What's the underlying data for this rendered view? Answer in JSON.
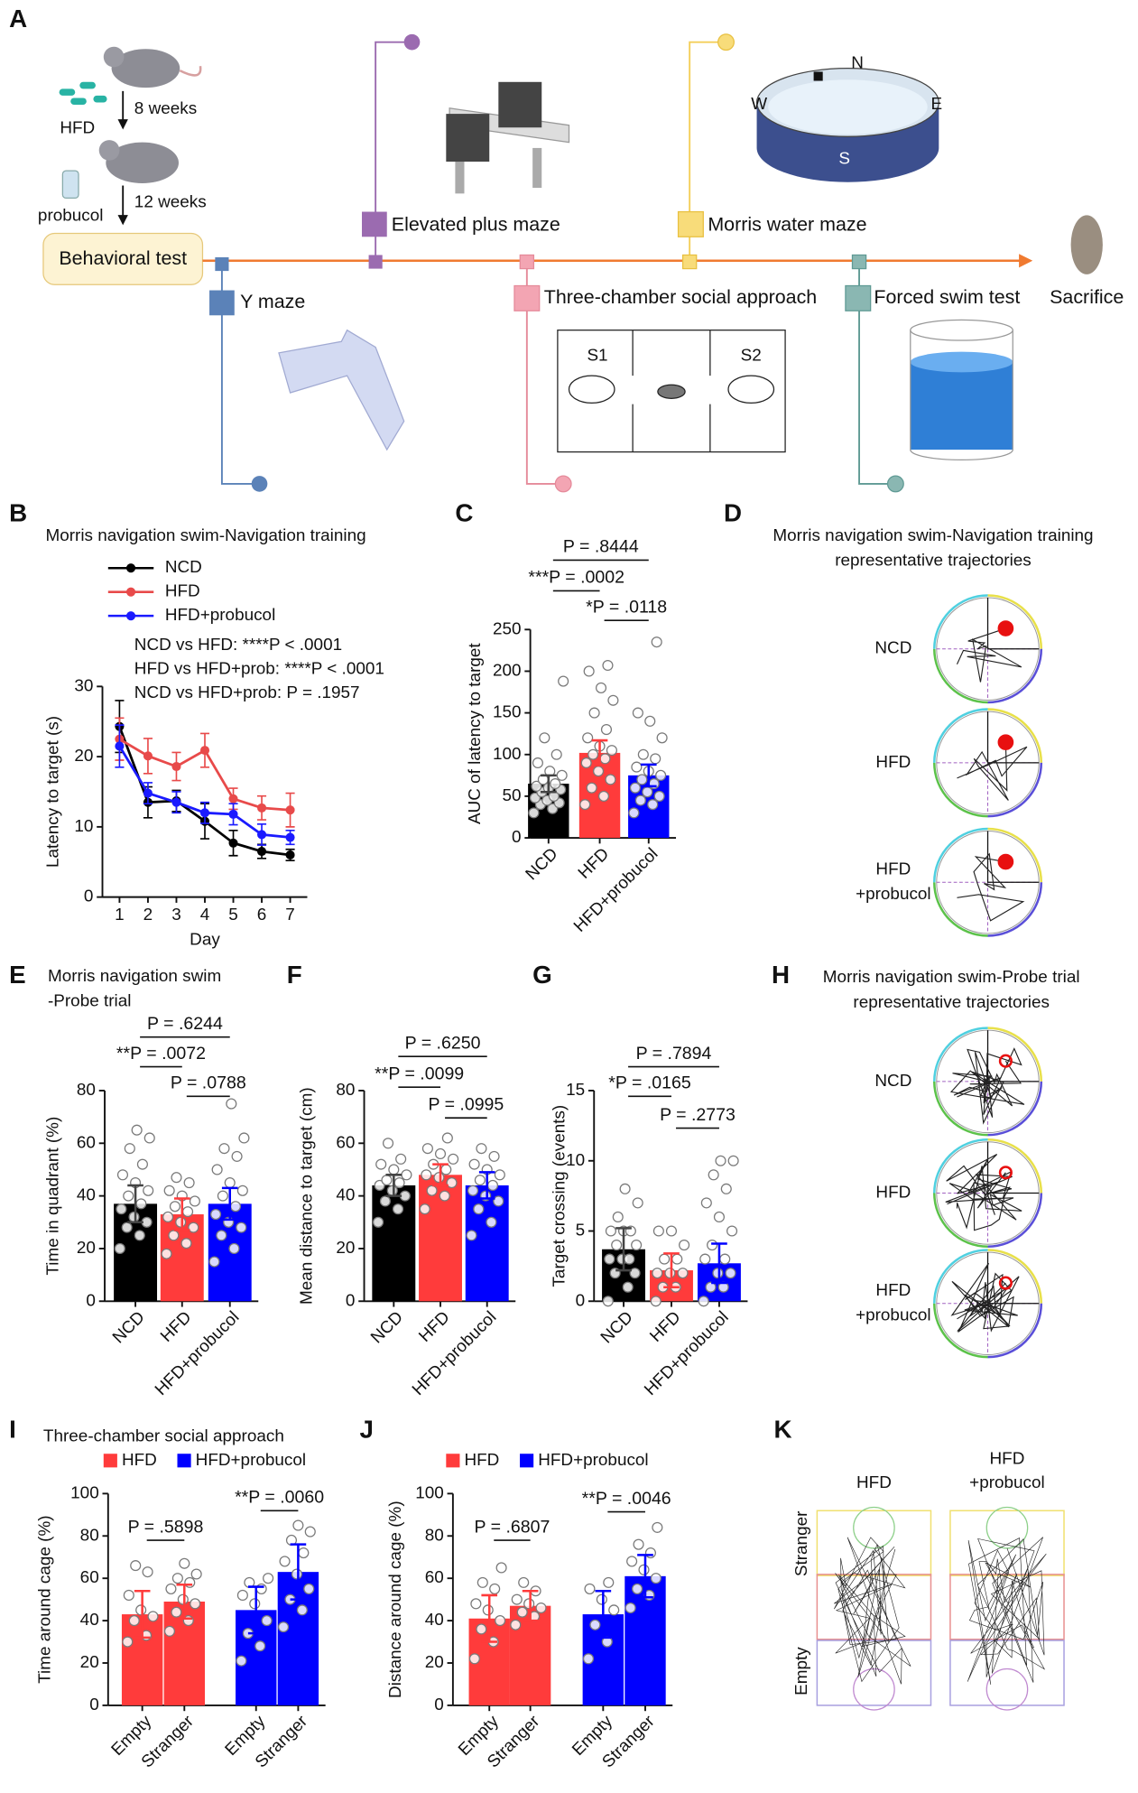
{
  "diagram": {
    "panel": "A",
    "hfd": "HFD",
    "weeks8": "8 weeks",
    "probucol": "probucol",
    "weeks12": "12 weeks",
    "start": "Behavioral test",
    "end": "Sacrifice",
    "tests": [
      "Y maze",
      "Elevated plus maze",
      "Three-chamber social approach",
      "Morris water maze",
      "Forced swim test"
    ],
    "chambers": [
      "S1",
      "S2"
    ],
    "compass": [
      "N",
      "W",
      "E",
      "S"
    ]
  },
  "trajectories": [
    {
      "panel": "D",
      "title": [
        "Morris navigation swim-Navigation training",
        "representative trajectories"
      ],
      "rows": [
        [
          "NCD"
        ],
        [
          "HFD"
        ],
        [
          "HFD",
          "+probucol"
        ]
      ]
    },
    {
      "panel": "H",
      "title": [
        "Morris navigation swim-Probe trial",
        "representative trajectories"
      ],
      "rows": [
        [
          "NCD"
        ],
        [
          "HFD"
        ],
        [
          "HFD",
          "+probucol"
        ]
      ]
    },
    {
      "panel": "K",
      "columns": [
        [
          "HFD"
        ],
        [
          "HFD",
          "+probucol"
        ]
      ],
      "rows": [
        "Stranger",
        "Empty"
      ]
    }
  ],
  "chart_data": [
    {
      "panel": "B",
      "type": "line",
      "title": "Morris navigation swim-Navigation training",
      "xlabel": "Day",
      "ylabel": "Latency to target (s)",
      "x": [
        1,
        2,
        3,
        4,
        5,
        6,
        7
      ],
      "xlim": [
        0.4,
        7.6
      ],
      "xticks": [
        1,
        2,
        3,
        4,
        5,
        6,
        7
      ],
      "ylim": [
        0,
        30
      ],
      "yticks": [
        0,
        10,
        20,
        30
      ],
      "series": [
        {
          "name": "NCD",
          "color": "#000000",
          "values": [
            24.3,
            13.5,
            13.7,
            10.8,
            7.7,
            6.5,
            6.0
          ],
          "errors": [
            3.7,
            2.2,
            1.5,
            2.5,
            1.8,
            1.0,
            0.8
          ]
        },
        {
          "name": "HFD",
          "color": "#e84a4a",
          "values": [
            22.5,
            20.1,
            18.6,
            20.9,
            14.0,
            12.7,
            12.4
          ],
          "errors": [
            3.0,
            2.5,
            2.0,
            2.4,
            1.5,
            1.7,
            2.4
          ]
        },
        {
          "name": "HFD+probucol",
          "color": "#1a1aff",
          "values": [
            21.5,
            14.8,
            13.5,
            12.0,
            11.8,
            8.9,
            8.5
          ],
          "errors": [
            3.0,
            1.5,
            1.5,
            1.5,
            1.5,
            1.5,
            1.0
          ]
        }
      ],
      "annotations": [
        "NCD vs HFD: ****P < .0001",
        "HFD vs HFD+prob: ****P < .0001",
        "NCD vs HFD+prob: P = .1957"
      ]
    },
    {
      "panel": "C",
      "type": "bar",
      "ylabel": "AUC of latency to target",
      "categories": [
        "NCD",
        "HFD",
        "HFD+probucol"
      ],
      "values": [
        65,
        102,
        75
      ],
      "errors": [
        10,
        15,
        13
      ],
      "colors": [
        "#000000",
        "#ff3b3b",
        "#0000ff"
      ],
      "points": [
        [
          30,
          35,
          40,
          42,
          45,
          48,
          50,
          55,
          58,
          60,
          62,
          65,
          70,
          75,
          80,
          90,
          100,
          120,
          188
        ],
        [
          40,
          50,
          60,
          70,
          80,
          90,
          95,
          100,
          105,
          110,
          120,
          130,
          150,
          165,
          180,
          200,
          207
        ],
        [
          30,
          40,
          45,
          50,
          55,
          60,
          65,
          70,
          75,
          80,
          85,
          95,
          100,
          120,
          140,
          150,
          235
        ]
      ],
      "ylim": [
        0,
        250
      ],
      "yticks": [
        0,
        50,
        100,
        150,
        200,
        250
      ],
      "comparisons": [
        {
          "label": "P = .8444",
          "pair": [
            0,
            2
          ]
        },
        {
          "label": "***P = .0002",
          "pair": [
            0,
            1
          ]
        },
        {
          "label": "*P = .0118",
          "pair": [
            1,
            2
          ]
        }
      ]
    },
    {
      "panel": "E",
      "type": "bar",
      "title": [
        "Morris navigation swim",
        "-Probe trial"
      ],
      "ylabel": "Time in quadrant (%)",
      "categories": [
        "NCD",
        "HFD",
        "HFD+probucol"
      ],
      "values": [
        37,
        33,
        37
      ],
      "errors": [
        7,
        6,
        6
      ],
      "colors": [
        "#000000",
        "#ff3b3b",
        "#0000ff"
      ],
      "points": [
        [
          20,
          25,
          28,
          30,
          32,
          35,
          37,
          40,
          42,
          45,
          48,
          52,
          58,
          62,
          65
        ],
        [
          18,
          22,
          25,
          28,
          30,
          32,
          34,
          36,
          38,
          40,
          42,
          45,
          47
        ],
        [
          15,
          20,
          25,
          28,
          30,
          33,
          36,
          40,
          42,
          45,
          50,
          55,
          58,
          62,
          75
        ]
      ],
      "ylim": [
        0,
        80
      ],
      "yticks": [
        0,
        20,
        40,
        60,
        80
      ],
      "comparisons": [
        {
          "label": "P = .6244",
          "pair": [
            0,
            2
          ]
        },
        {
          "label": "**P = .0072",
          "pair": [
            0,
            1
          ]
        },
        {
          "label": "P = .0788",
          "pair": [
            1,
            2
          ]
        }
      ]
    },
    {
      "panel": "F",
      "type": "bar",
      "ylabel": "Mean distance to target (cm)",
      "categories": [
        "NCD",
        "HFD",
        "HFD+probucol"
      ],
      "values": [
        44,
        48,
        44
      ],
      "errors": [
        4,
        4,
        5
      ],
      "colors": [
        "#000000",
        "#ff3b3b",
        "#0000ff"
      ],
      "points": [
        [
          30,
          35,
          38,
          40,
          42,
          44,
          45,
          46,
          48,
          50,
          52,
          54,
          60
        ],
        [
          35,
          40,
          42,
          45,
          47,
          48,
          50,
          52,
          54,
          56,
          58,
          62
        ],
        [
          25,
          30,
          35,
          38,
          40,
          42,
          44,
          46,
          48,
          50,
          52,
          55,
          58
        ]
      ],
      "ylim": [
        0,
        80
      ],
      "yticks": [
        0,
        20,
        40,
        60,
        80
      ],
      "comparisons": [
        {
          "label": "P = .6250",
          "pair": [
            0,
            2
          ]
        },
        {
          "label": "**P = .0099",
          "pair": [
            0,
            1
          ]
        },
        {
          "label": "P = .0995",
          "pair": [
            1,
            2
          ]
        }
      ]
    },
    {
      "panel": "G",
      "type": "bar",
      "ylabel": "Target crossing (events)",
      "categories": [
        "NCD",
        "HFD",
        "HFD+probucol"
      ],
      "values": [
        3.7,
        2.2,
        2.7
      ],
      "errors": [
        1.5,
        1.2,
        1.4
      ],
      "colors": [
        "#000000",
        "#ff3b3b",
        "#0000ff"
      ],
      "points": [
        [
          0,
          1,
          2,
          2,
          3,
          3,
          3,
          4,
          4,
          5,
          5,
          5,
          6,
          7,
          8
        ],
        [
          0,
          1,
          1,
          2,
          2,
          2,
          3,
          3,
          4,
          5,
          5
        ],
        [
          0,
          1,
          1,
          2,
          2,
          3,
          3,
          4,
          5,
          6,
          7,
          8,
          9,
          10,
          10
        ]
      ],
      "ylim": [
        0,
        15
      ],
      "yticks": [
        0,
        5,
        10,
        15
      ],
      "comparisons": [
        {
          "label": "P = .7894",
          "pair": [
            0,
            2
          ]
        },
        {
          "label": "*P = .0165",
          "pair": [
            0,
            1
          ]
        },
        {
          "label": "P = .2773",
          "pair": [
            1,
            2
          ]
        }
      ]
    },
    {
      "panel": "I",
      "type": "bar",
      "title": "Three-chamber social approach",
      "ylabel": "Time around cage (%)",
      "categories": [
        "Empty",
        "Stranger",
        "Empty",
        "Stranger"
      ],
      "series": [
        {
          "name": "HFD",
          "color": "#ff3b3b",
          "values": [
            43,
            49,
            null,
            null
          ],
          "errors": [
            11,
            8,
            null,
            null
          ],
          "points": [
            [
              30,
              33,
              40,
              42,
              45,
              52,
              63,
              66
            ],
            [
              35,
              40,
              44,
              48,
              50,
              55,
              58,
              60,
              62,
              67
            ],
            null,
            null
          ]
        },
        {
          "name": "HFD+probucol",
          "color": "#0000ff",
          "values": [
            null,
            null,
            45,
            63
          ],
          "errors": [
            null,
            null,
            11,
            13
          ],
          "points": [
            null,
            null,
            [
              21,
              28,
              34,
              40,
              48,
              52,
              55,
              58,
              60
            ],
            [
              37,
              45,
              50,
              55,
              62,
              68,
              72,
              78,
              82,
              85
            ]
          ]
        }
      ],
      "ylim": [
        0,
        100
      ],
      "yticks": [
        0,
        20,
        40,
        60,
        80,
        100
      ],
      "comparisons": [
        {
          "label": "P = .5898",
          "pair": [
            0,
            1
          ]
        },
        {
          "label": "**P = .0060",
          "pair": [
            2,
            3
          ]
        }
      ]
    },
    {
      "panel": "J",
      "type": "bar",
      "ylabel": "Distance around cage (%)",
      "categories": [
        "Empty",
        "Stranger",
        "Empty",
        "Stranger"
      ],
      "series": [
        {
          "name": "HFD",
          "color": "#ff3b3b",
          "values": [
            41,
            47,
            null,
            null
          ],
          "errors": [
            11,
            7,
            null,
            null
          ],
          "points": [
            [
              22,
              30,
              36,
              40,
              45,
              48,
              55,
              58,
              65
            ],
            [
              38,
              42,
              44,
              46,
              48,
              50,
              54,
              58
            ],
            null,
            null
          ]
        },
        {
          "name": "HFD+probucol",
          "color": "#0000ff",
          "values": [
            null,
            null,
            43,
            61
          ],
          "errors": [
            null,
            null,
            11,
            10
          ],
          "points": [
            null,
            null,
            [
              22,
              30,
              38,
              45,
              50,
              55,
              58
            ],
            [
              46,
              52,
              55,
              60,
              64,
              68,
              72,
              76,
              84
            ]
          ]
        }
      ],
      "ylim": [
        0,
        100
      ],
      "yticks": [
        0,
        20,
        40,
        60,
        80,
        100
      ],
      "comparisons": [
        {
          "label": "P = .6807",
          "pair": [
            0,
            1
          ]
        },
        {
          "label": "**P = .0046",
          "pair": [
            2,
            3
          ]
        }
      ]
    }
  ]
}
